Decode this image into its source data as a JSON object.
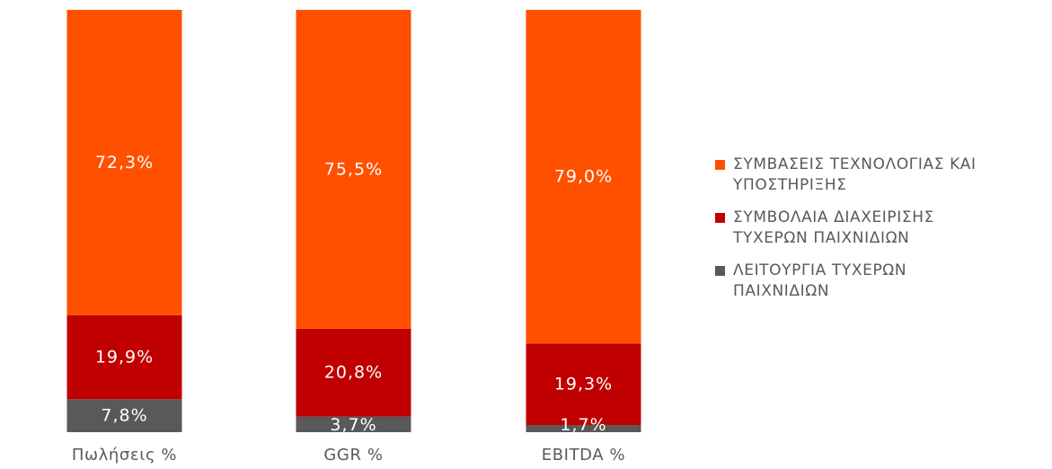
{
  "chart_data": {
    "type": "bar",
    "stacked": true,
    "normalized_percent": true,
    "categories": [
      "Πωλήσεις %",
      "GGR %",
      "EBITDA %"
    ],
    "series": [
      {
        "name": "ΛΕΙΤΟΥΡΓΙΑ ΤΥΧΕΡΩΝ ΠΑΙΧΝΙΔΙΩΝ",
        "values": [
          7.8,
          3.7,
          1.7
        ],
        "labels": [
          "7,8%",
          "3,7%",
          "1,7%"
        ],
        "color": "#595959"
      },
      {
        "name": "ΣΥΜΒΟΛΑΙΑ ΔΙΑΧΕΙΡΙΣΗΣ ΤΥΧΕΡΩΝ ΠΑΙΧΝΙΔΙΩΝ",
        "values": [
          19.9,
          20.8,
          19.3
        ],
        "labels": [
          "19,9%",
          "20,8%",
          "19,3%"
        ],
        "color": "#C00000"
      },
      {
        "name": "ΣΥΜΒΑΣΕΙΣ ΤΕΧΝΟΛΟΓΙΑΣ ΚΑΙ ΥΠΟΣΤΗΡΙΞΗΣ",
        "values": [
          72.3,
          75.5,
          79.0
        ],
        "labels": [
          "72,3%",
          "75,5%",
          "79,0%"
        ],
        "color": "#FF5000"
      }
    ],
    "ylim": [
      0,
      100
    ],
    "title": "",
    "xlabel": "",
    "ylabel": "",
    "grid": false,
    "legend_position": "right"
  },
  "legend": {
    "items": [
      {
        "label_line1": "ΣΥΜΒΑΣΕΙΣ ΤΕΧΝΟΛΟΓΙΑΣ ΚΑΙ",
        "label_line2": "ΥΠΟΣΤΗΡΙΞΗΣ",
        "color": "#FF5000"
      },
      {
        "label_line1": "ΣΥΜΒΟΛΑΙΑ ΔΙΑΧΕΙΡΙΣΗΣ",
        "label_line2": "ΤΥΧΕΡΩΝ ΠΑΙΧΝΙΔΙΩΝ",
        "color": "#C00000"
      },
      {
        "label_line1": "ΛΕΙΤΟΥΡΓΙΑ ΤΥΧΕΡΩΝ",
        "label_line2": "ΠΑΙΧΝΙΔΙΩΝ",
        "color": "#595959"
      }
    ]
  }
}
